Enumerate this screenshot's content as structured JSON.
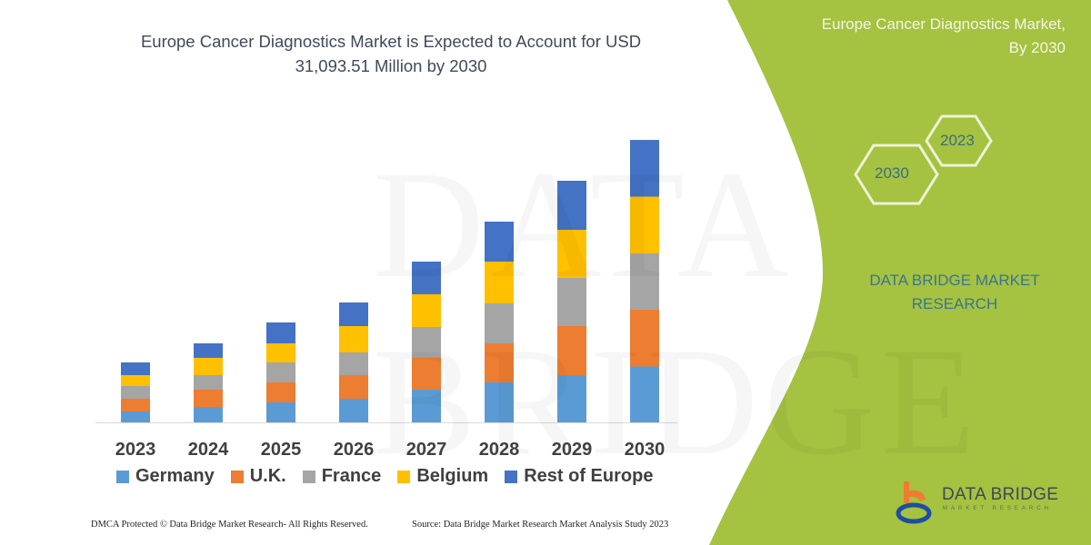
{
  "chart_data": {
    "type": "bar",
    "stacked": true,
    "title": "Europe Cancer Diagnostics Market is Expected to Account for USD 31,093.51 Million by 2030",
    "xlabel": "",
    "ylabel": "",
    "categories": [
      "2023",
      "2024",
      "2025",
      "2026",
      "2027",
      "2028",
      "2029",
      "2030"
    ],
    "series": [
      {
        "name": "Germany",
        "color": "#5b9bd5",
        "values": [
          1200,
          1700,
          2200,
          2600,
          3600,
          4400,
          5200,
          6150
        ]
      },
      {
        "name": "U.K.",
        "color": "#ed7d31",
        "values": [
          1400,
          1900,
          2200,
          2600,
          3500,
          4300,
          5400,
          6250
        ]
      },
      {
        "name": "France",
        "color": "#a5a5a5",
        "values": [
          1400,
          1600,
          2200,
          2500,
          3400,
          4400,
          5300,
          6200
        ]
      },
      {
        "name": "Belgium",
        "color": "#ffc000",
        "values": [
          1200,
          1900,
          2100,
          2900,
          3600,
          4600,
          5300,
          6250
        ]
      },
      {
        "name": "Rest of Europe",
        "color": "#4472c4",
        "values": [
          1400,
          1600,
          2300,
          2600,
          3600,
          4400,
          5400,
          6243.51
        ]
      }
    ],
    "ylim": [
      0,
      31100
    ],
    "grid": false,
    "legend": "bottom"
  },
  "title_lines": [
    "Europe Cancer Diagnostics Market is Expected to Account for USD",
    "31,093.51 Million by 2030"
  ],
  "side_panel": {
    "title_lines": [
      "Europe Cancer Diagnostics Market,",
      "By 2030"
    ],
    "hex_years": [
      "2023",
      "2030"
    ],
    "brand_lines": [
      "DATA BRIDGE MARKET",
      "RESEARCH"
    ],
    "color": "#a5c240"
  },
  "logo": {
    "name": "DATA BRIDGE",
    "tagline": "MARKET RESEARCH"
  },
  "watermark": "DATA BRIDGE",
  "footer": {
    "left": "DMCA Protected © Data Bridge Market Research- All Rights Reserved.",
    "right": "Source: Data Bridge Market Research Market Analysis Study 2023"
  }
}
